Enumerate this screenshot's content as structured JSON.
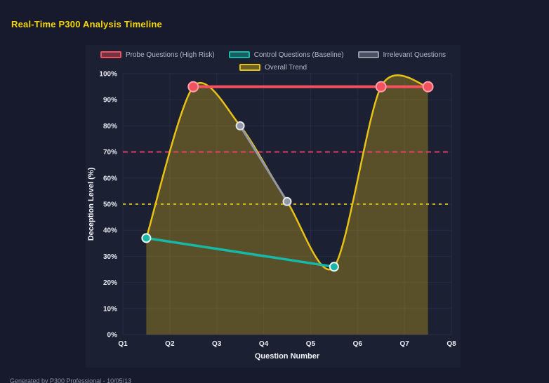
{
  "page": {
    "title": "Real-Time P300 Analysis Timeline",
    "footer": "Generated by P300 Professional - 10/05/13"
  },
  "theme": {
    "page_bg": "#161a2c",
    "panel_bg": "#1c2033",
    "title_color": "#f5d60a",
    "legend_text": "#b4bac6",
    "tick_text": "#e9ecf3",
    "axis_text": "#f2f4f8",
    "footer_text": "#8a92a4"
  },
  "chart_data": {
    "type": "line",
    "title": "Real-Time P300 Analysis Timeline",
    "xlabel": "Question Number",
    "ylabel": "Deception Level (%)",
    "x_range": [
      1,
      8
    ],
    "y_range": [
      0,
      100
    ],
    "x_ticks": [
      "Q1",
      "Q2",
      "Q3",
      "Q4",
      "Q5",
      "Q6",
      "Q7",
      "Q8"
    ],
    "y_ticks": [
      "0%",
      "10%",
      "20%",
      "30%",
      "40%",
      "50%",
      "60%",
      "70%",
      "80%",
      "90%",
      "100%"
    ],
    "grid_color": "#262b41",
    "legend_rows": [
      [
        0,
        1,
        2
      ],
      [
        3
      ]
    ],
    "series": [
      {
        "name": "Probe Questions (High Risk)",
        "color": "#f4515f",
        "point_border": "#ffa2ad",
        "point_radius": 7,
        "line_width": 4,
        "smooth": false,
        "fill": false,
        "points": [
          [
            2.5,
            95
          ],
          [
            6.5,
            95
          ],
          [
            7.5,
            95
          ]
        ]
      },
      {
        "name": "Control Questions (Baseline)",
        "color": "#16b8a8",
        "point_border": "#eef9f7",
        "point_radius": 6,
        "line_width": 3.5,
        "smooth": false,
        "fill": false,
        "points": [
          [
            1.5,
            37
          ],
          [
            5.5,
            26
          ]
        ]
      },
      {
        "name": "Irrelevant Questions",
        "color": "#9299a4",
        "point_border": "#e4e7ec",
        "point_radius": 5.5,
        "line_width": 3,
        "smooth": false,
        "fill": false,
        "points": [
          [
            3.5,
            80
          ],
          [
            4.5,
            51
          ]
        ]
      },
      {
        "name": "Overall Trend",
        "color": "#e8c117",
        "point_border": "#e8c117",
        "point_radius": 0,
        "line_width": 2.5,
        "smooth": true,
        "fill": true,
        "fill_opacity": 0.3,
        "points": [
          [
            1.5,
            37
          ],
          [
            2.5,
            95
          ],
          [
            3.5,
            80
          ],
          [
            4.5,
            51
          ],
          [
            5.5,
            26
          ],
          [
            6.5,
            95
          ],
          [
            7.5,
            95
          ]
        ]
      }
    ],
    "thresholds": [
      {
        "y": 70,
        "color": "#f43f6f",
        "dash": "7 5"
      },
      {
        "y": 50,
        "color": "#e3c414",
        "dash": "4 5"
      }
    ]
  }
}
